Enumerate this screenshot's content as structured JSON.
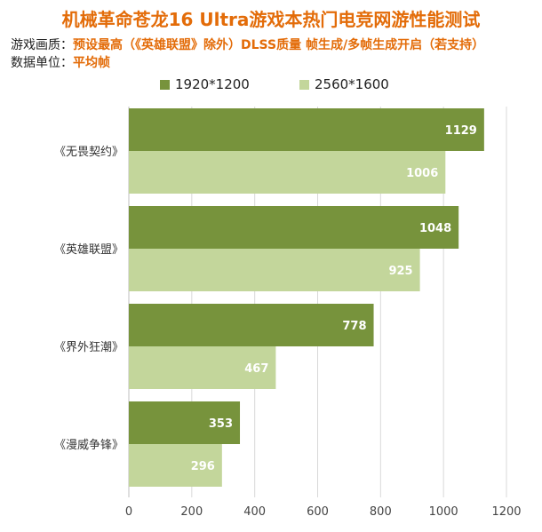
{
  "header": {
    "title": "机械革命苍龙16 Ultra游戏本热门电竞网游性能测试",
    "settings_label": "游戏画质：",
    "settings_value": "预设最高（《英雄联盟》除外）DLSS质量 帧生成/多帧生成开启（若支持）",
    "unit_label": "数据单位：",
    "unit_value": "平均帧"
  },
  "colors": {
    "series1": "#77933c",
    "series2": "#c3d69b",
    "grid": "#d9d9d9",
    "title": "#e36c09"
  },
  "chart_data": {
    "type": "bar",
    "orientation": "horizontal",
    "categories": [
      "《无畏契约》",
      "《英雄联盟》",
      "《界外狂潮》",
      "《漫威争锋》"
    ],
    "series": [
      {
        "name": "1920*1200",
        "values": [
          1129,
          1048,
          778,
          353
        ]
      },
      {
        "name": "2560*1600",
        "values": [
          1006,
          925,
          467,
          296
        ]
      }
    ],
    "xlim": [
      0,
      1200
    ],
    "xticks": [
      0,
      200,
      400,
      600,
      800,
      1000,
      1200
    ],
    "grid": true,
    "legend": "top"
  }
}
